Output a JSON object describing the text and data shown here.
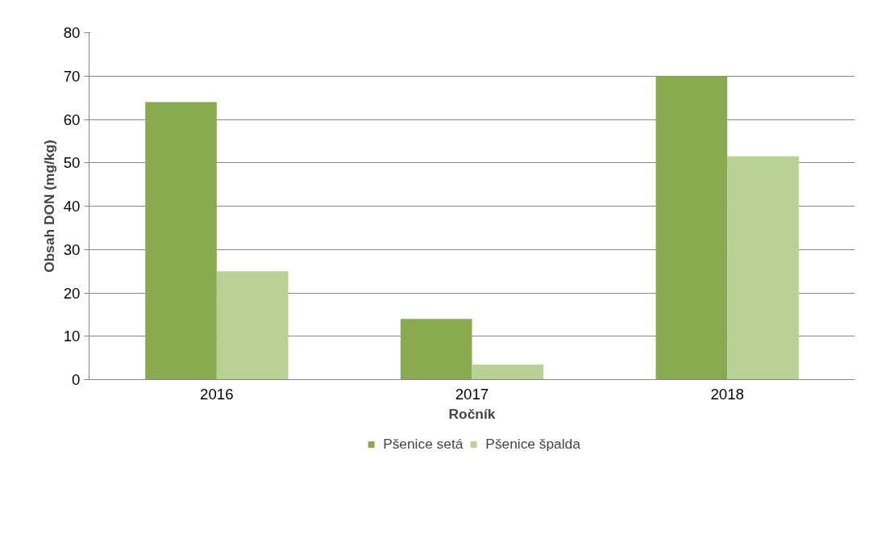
{
  "chart_data": {
    "type": "bar",
    "xlabel": "Ročník",
    "ylabel": "Obsah DON (mg/kg)",
    "categories": [
      "2016",
      "2017",
      "2018"
    ],
    "series": [
      {
        "name": "Pšenice setá",
        "color": "#8aaa50",
        "values": [
          64,
          14,
          70
        ]
      },
      {
        "name": "Pšenice špalda",
        "color": "#b9d195",
        "values": [
          25,
          3.5,
          51.5
        ]
      }
    ],
    "ylim": [
      0,
      80
    ],
    "yticks": [
      0,
      10,
      20,
      30,
      40,
      50,
      60,
      70,
      80
    ],
    "grid": "y",
    "legend": "bottom"
  }
}
